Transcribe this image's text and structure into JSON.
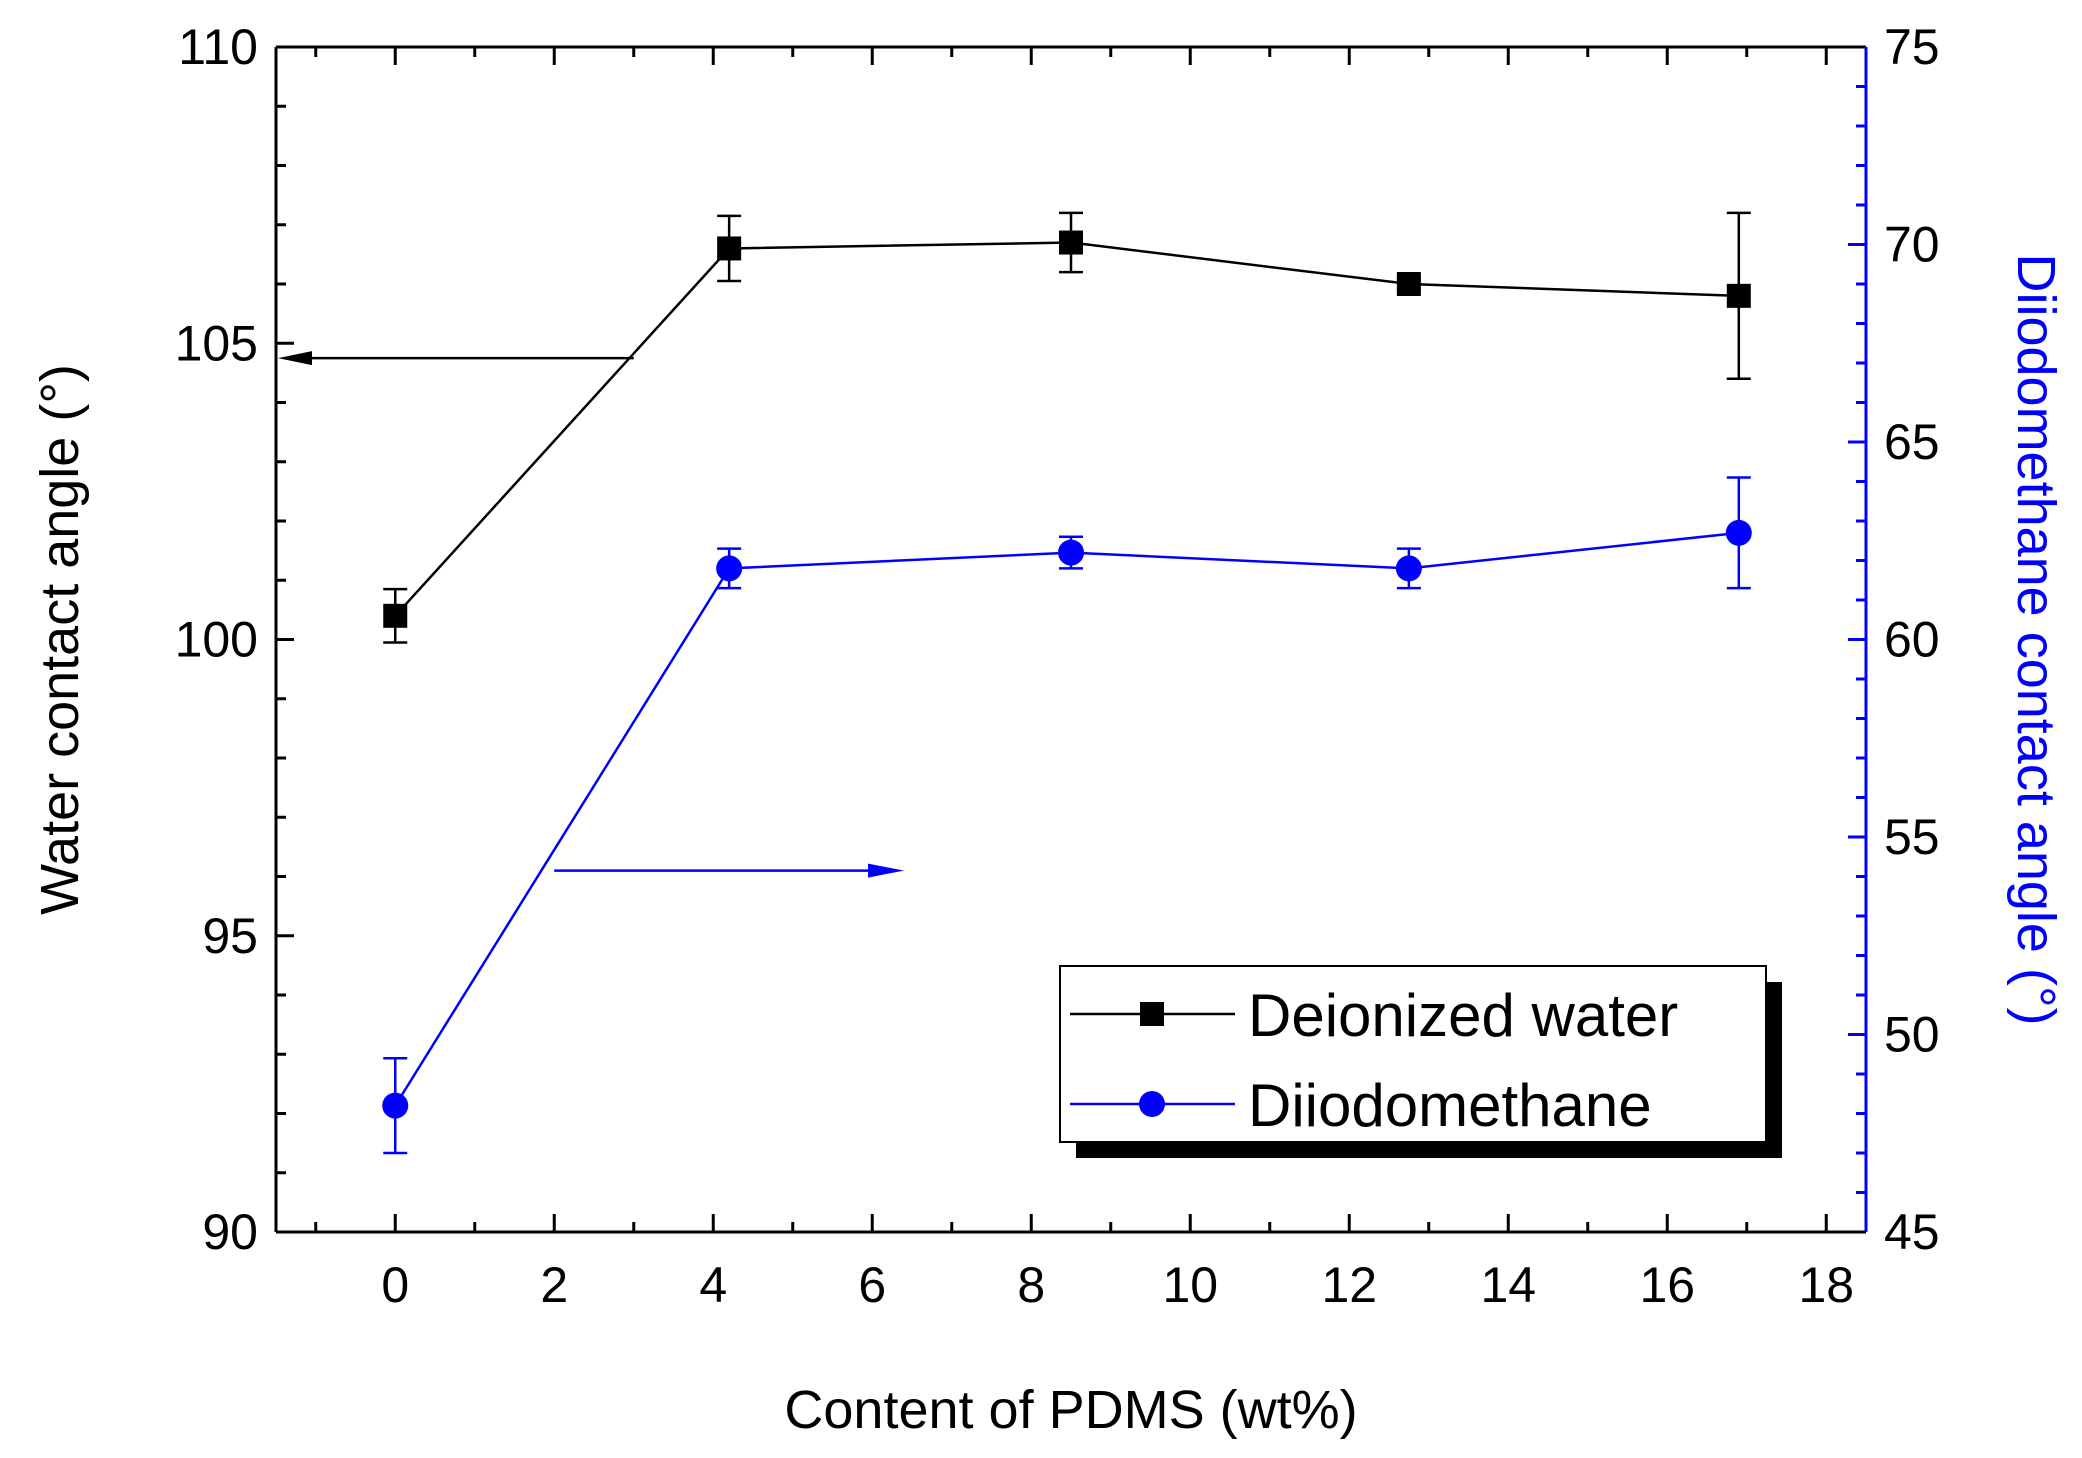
{
  "chart_data": {
    "type": "line",
    "xlabel": "Content of PDMS (wt%)",
    "ylabel": "Water contact angle (°)",
    "y2label": "Diiodomethane contact angle (°)",
    "xlim": [
      -1.5,
      18.5
    ],
    "ylim": [
      90,
      110
    ],
    "y2lim": [
      45,
      75
    ],
    "xticks": [
      0,
      2,
      4,
      6,
      8,
      10,
      12,
      14,
      16,
      18
    ],
    "yticks": [
      90,
      95,
      100,
      105,
      110
    ],
    "y2ticks": [
      45,
      50,
      55,
      60,
      65,
      70,
      75
    ],
    "grid": false,
    "legend_position": "bottom-right",
    "series": [
      {
        "name": "Deionized water",
        "axis": "left",
        "marker": "square",
        "color": "#000000",
        "x": [
          0,
          4.2,
          8.5,
          12.75,
          16.9
        ],
        "y": [
          100.4,
          106.6,
          106.7,
          106.0,
          105.8
        ],
        "yerr": [
          0.45,
          0.55,
          0.5,
          0.1,
          1.4
        ]
      },
      {
        "name": "Diiodomethane",
        "axis": "right",
        "marker": "circle",
        "color": "#0000ff",
        "x": [
          0,
          4.2,
          8.5,
          12.75,
          16.9
        ],
        "y": [
          48.2,
          61.8,
          62.2,
          61.8,
          62.7
        ],
        "yerr": [
          1.2,
          0.5,
          0.4,
          0.5,
          1.4
        ]
      }
    ],
    "annotations": [
      {
        "type": "arrow",
        "direction": "left",
        "series": "Deionized water",
        "points_to_axis": "left"
      },
      {
        "type": "arrow",
        "direction": "right",
        "series": "Diiodomethane",
        "points_to_axis": "right"
      }
    ]
  }
}
